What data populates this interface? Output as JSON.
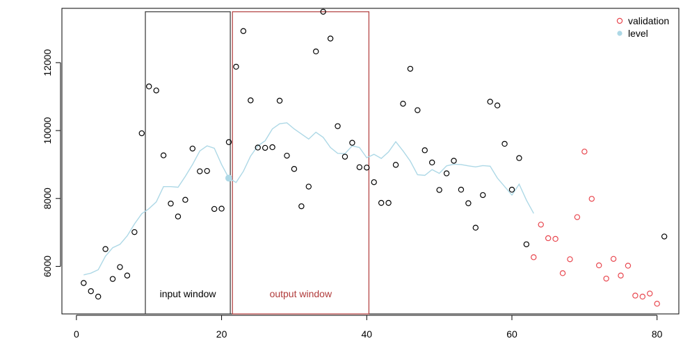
{
  "chart_data": {
    "type": "scatter",
    "title": "",
    "xlabel": "",
    "ylabel": "",
    "xlim": [
      -2,
      83
    ],
    "ylim": [
      4600,
      13600
    ],
    "x_ticks": [
      0,
      20,
      40,
      60,
      80
    ],
    "y_ticks": [
      6000,
      8000,
      10000,
      12000
    ],
    "legend": {
      "placement": "top-right",
      "entries": [
        {
          "label": "validation",
          "marker": "open-circle",
          "color": "#e8464e"
        },
        {
          "label": "level",
          "marker": "filled-circle",
          "color": "#add8e6"
        }
      ]
    },
    "windows": [
      {
        "label": "input window",
        "x_start": 9.5,
        "x_end": 21.2,
        "y_top": 13500,
        "color": "#333333",
        "label_color": "#000000"
      },
      {
        "label": "output window",
        "x_start": 21.5,
        "x_end": 40.3,
        "y_top": 13500,
        "color": "#b03a3a",
        "label_color": "#b03a3a"
      }
    ],
    "highlight_point": {
      "x": 21,
      "y": 8600,
      "color": "#add8e6"
    },
    "series": [
      {
        "kind": "points",
        "color": "#000000",
        "points": [
          [
            1,
            5510
          ],
          [
            2,
            5270
          ],
          [
            3,
            5110
          ],
          [
            4,
            6510
          ],
          [
            5,
            5630
          ],
          [
            6,
            5980
          ],
          [
            7,
            5730
          ],
          [
            8,
            7010
          ],
          [
            9,
            9920
          ],
          [
            10,
            11300
          ],
          [
            11,
            11180
          ],
          [
            12,
            9270
          ],
          [
            13,
            7850
          ],
          [
            14,
            7470
          ],
          [
            15,
            7960
          ],
          [
            16,
            9470
          ],
          [
            17,
            8800
          ],
          [
            18,
            8810
          ],
          [
            19,
            7690
          ],
          [
            20,
            7700
          ],
          [
            21,
            9660
          ],
          [
            22,
            11880
          ],
          [
            23,
            12930
          ],
          [
            24,
            10890
          ],
          [
            25,
            9500
          ],
          [
            26,
            9490
          ],
          [
            27,
            9510
          ],
          [
            28,
            10880
          ],
          [
            29,
            9260
          ],
          [
            30,
            8870
          ],
          [
            31,
            7770
          ],
          [
            32,
            8350
          ],
          [
            33,
            12330
          ],
          [
            34,
            13500
          ],
          [
            35,
            12710
          ],
          [
            36,
            10130
          ],
          [
            37,
            9230
          ],
          [
            38,
            9640
          ],
          [
            39,
            8920
          ],
          [
            40,
            8910
          ],
          [
            41,
            8480
          ],
          [
            42,
            7870
          ],
          [
            43,
            7870
          ],
          [
            44,
            8990
          ],
          [
            45,
            10790
          ],
          [
            46,
            11820
          ],
          [
            47,
            10600
          ],
          [
            48,
            9420
          ],
          [
            49,
            9060
          ],
          [
            50,
            8250
          ],
          [
            51,
            8740
          ],
          [
            52,
            9110
          ],
          [
            53,
            8260
          ],
          [
            54,
            7860
          ],
          [
            55,
            7140
          ],
          [
            56,
            8100
          ],
          [
            57,
            10850
          ],
          [
            58,
            10740
          ],
          [
            59,
            9610
          ],
          [
            60,
            8260
          ],
          [
            61,
            9190
          ],
          [
            62,
            6650
          ],
          [
            81,
            6880
          ]
        ]
      },
      {
        "kind": "points",
        "name": "validation",
        "color": "#e8464e",
        "points": [
          [
            63,
            6270
          ],
          [
            64,
            7230
          ],
          [
            65,
            6830
          ],
          [
            66,
            6810
          ],
          [
            67,
            5800
          ],
          [
            68,
            6210
          ],
          [
            69,
            7450
          ],
          [
            70,
            9380
          ],
          [
            71,
            7990
          ],
          [
            72,
            6030
          ],
          [
            73,
            5640
          ],
          [
            74,
            6220
          ],
          [
            75,
            5730
          ],
          [
            76,
            6020
          ],
          [
            77,
            5140
          ],
          [
            78,
            5110
          ],
          [
            79,
            5200
          ],
          [
            80,
            4900
          ]
        ]
      },
      {
        "kind": "line",
        "name": "level",
        "color": "#add8e6",
        "points": [
          [
            1,
            5750
          ],
          [
            2,
            5800
          ],
          [
            3,
            5900
          ],
          [
            4,
            6300
          ],
          [
            5,
            6550
          ],
          [
            6,
            6650
          ],
          [
            7,
            6900
          ],
          [
            8,
            7250
          ],
          [
            9,
            7550
          ],
          [
            10,
            7700
          ],
          [
            11,
            7900
          ],
          [
            12,
            8350
          ],
          [
            13,
            8350
          ],
          [
            14,
            8330
          ],
          [
            15,
            8650
          ],
          [
            16,
            9000
          ],
          [
            17,
            9400
          ],
          [
            18,
            9550
          ],
          [
            19,
            9480
          ],
          [
            20,
            9000
          ],
          [
            21,
            8600
          ],
          [
            22,
            8470
          ],
          [
            23,
            8800
          ],
          [
            24,
            9250
          ],
          [
            25,
            9550
          ],
          [
            26,
            9700
          ],
          [
            27,
            10050
          ],
          [
            28,
            10200
          ],
          [
            29,
            10230
          ],
          [
            30,
            10050
          ],
          [
            31,
            9900
          ],
          [
            32,
            9750
          ],
          [
            33,
            9950
          ],
          [
            34,
            9800
          ],
          [
            35,
            9500
          ],
          [
            36,
            9330
          ],
          [
            37,
            9320
          ],
          [
            38,
            9550
          ],
          [
            39,
            9500
          ],
          [
            40,
            9200
          ],
          [
            41,
            9300
          ],
          [
            42,
            9180
          ],
          [
            43,
            9370
          ],
          [
            44,
            9670
          ],
          [
            45,
            9400
          ],
          [
            46,
            9100
          ],
          [
            47,
            8700
          ],
          [
            48,
            8680
          ],
          [
            49,
            8850
          ],
          [
            50,
            8740
          ],
          [
            51,
            8960
          ],
          [
            52,
            9010
          ],
          [
            53,
            9000
          ],
          [
            54,
            8960
          ],
          [
            55,
            8930
          ],
          [
            56,
            8970
          ],
          [
            57,
            8950
          ],
          [
            58,
            8600
          ],
          [
            59,
            8350
          ],
          [
            60,
            8100
          ],
          [
            61,
            8420
          ],
          [
            62,
            7950
          ],
          [
            63,
            7560
          ]
        ]
      }
    ]
  }
}
